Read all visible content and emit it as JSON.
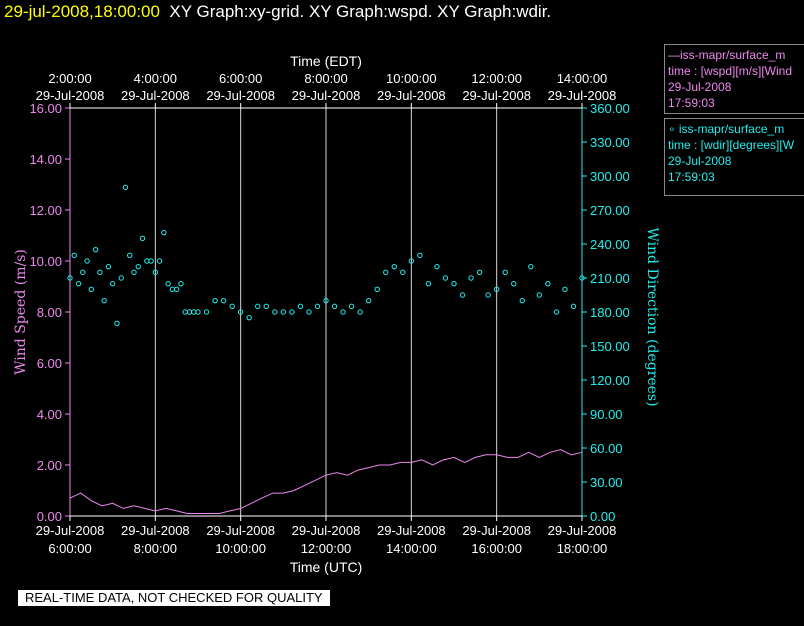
{
  "header": {
    "timestamp": "29-jul-2008,18:00:00",
    "graphs": "XY Graph:xy-grid.  XY Graph:wspd.  XY Graph:wdir."
  },
  "legend": [
    {
      "line1": "—iss-mapr/surface_m",
      "line2": "time : [wspd][m/s][Wind",
      "line3": "29-Jul-2008",
      "line4": "17:59:03"
    },
    {
      "line1": "∘ iss-mapr/surface_m",
      "line2": "time : [wdir][degrees][W",
      "line3": "29-Jul-2008",
      "line4": "17:59:03"
    }
  ],
  "qc_banner": "REAL-TIME DATA, NOT CHECKED FOR QUALITY",
  "colors": {
    "wspd": "#ee88ee",
    "wdir": "#22eeee",
    "axis_left": "#ee88ee",
    "axis_right": "#22eeee",
    "grid": "#ffffff",
    "background": "#000000"
  },
  "chart_data": {
    "type": "line",
    "top_axis_title": "Time (EDT)",
    "bottom_axis_title": "Time (UTC)",
    "ylabel_left": "Wind Speed (m/s)",
    "ylabel_right": "Wind Direction (degrees)",
    "xlim_utc_hours": [
      6.0,
      18.0
    ],
    "ylim_left": [
      0,
      16
    ],
    "ylim_right": [
      0,
      360
    ],
    "yticks_left": [
      "0.00",
      "2.00",
      "4.00",
      "6.00",
      "8.00",
      "10.00",
      "12.00",
      "14.00",
      "16.00"
    ],
    "yticks_right": [
      "0.00",
      "30.00",
      "60.00",
      "90.00",
      "120.00",
      "150.00",
      "180.00",
      "210.00",
      "240.00",
      "270.00",
      "300.00",
      "330.00",
      "360.00"
    ],
    "xticks_bottom": [
      {
        "date": "29-Jul-2008",
        "time": "6:00:00"
      },
      {
        "date": "29-Jul-2008",
        "time": "8:00:00"
      },
      {
        "date": "29-Jul-2008",
        "time": "10:00:00"
      },
      {
        "date": "29-Jul-2008",
        "time": "12:00:00"
      },
      {
        "date": "29-Jul-2008",
        "time": "14:00:00"
      },
      {
        "date": "29-Jul-2008",
        "time": "16:00:00"
      },
      {
        "date": "29-Jul-2008",
        "time": "18:00:00"
      }
    ],
    "xticks_top": [
      {
        "time": "2:00:00",
        "date": "29-Jul-2008"
      },
      {
        "time": "4:00:00",
        "date": "29-Jul-2008"
      },
      {
        "time": "6:00:00",
        "date": "29-Jul-2008"
      },
      {
        "time": "8:00:00",
        "date": "29-Jul-2008"
      },
      {
        "time": "10:00:00",
        "date": "29-Jul-2008"
      },
      {
        "time": "12:00:00",
        "date": "29-Jul-2008"
      },
      {
        "time": "14:00:00",
        "date": "29-Jul-2008"
      }
    ],
    "grid_x_hours_utc": [
      8,
      10,
      12,
      14,
      16
    ],
    "series": [
      {
        "key": "wspd",
        "axis": "left",
        "style": "line",
        "x": [
          6.0,
          6.25,
          6.5,
          6.75,
          7.0,
          7.25,
          7.5,
          7.75,
          8.0,
          8.25,
          8.5,
          8.75,
          9.0,
          9.25,
          9.5,
          9.75,
          10.0,
          10.25,
          10.5,
          10.75,
          11.0,
          11.25,
          11.5,
          11.75,
          12.0,
          12.25,
          12.5,
          12.75,
          13.0,
          13.25,
          13.5,
          13.75,
          14.0,
          14.25,
          14.5,
          14.75,
          15.0,
          15.25,
          15.5,
          15.75,
          16.0,
          16.25,
          16.5,
          16.75,
          17.0,
          17.25,
          17.5,
          17.75,
          18.0
        ],
        "y": [
          0.7,
          0.9,
          0.6,
          0.4,
          0.5,
          0.3,
          0.4,
          0.3,
          0.2,
          0.3,
          0.2,
          0.1,
          0.1,
          0.1,
          0.1,
          0.2,
          0.3,
          0.5,
          0.7,
          0.9,
          0.9,
          1.0,
          1.2,
          1.4,
          1.6,
          1.7,
          1.6,
          1.8,
          1.9,
          2.0,
          2.0,
          2.1,
          2.1,
          2.2,
          2.0,
          2.2,
          2.3,
          2.1,
          2.3,
          2.4,
          2.4,
          2.3,
          2.3,
          2.5,
          2.3,
          2.5,
          2.6,
          2.4,
          2.5
        ]
      },
      {
        "key": "wdir",
        "axis": "right",
        "style": "scatter",
        "x": [
          6.0,
          6.1,
          6.2,
          6.3,
          6.4,
          6.5,
          6.6,
          6.7,
          6.8,
          6.9,
          7.0,
          7.1,
          7.2,
          7.3,
          7.4,
          7.5,
          7.6,
          7.7,
          7.8,
          7.9,
          8.0,
          8.1,
          8.2,
          8.3,
          8.4,
          8.5,
          8.6,
          8.7,
          8.8,
          8.9,
          9.0,
          9.2,
          9.4,
          9.6,
          9.8,
          10.0,
          10.2,
          10.4,
          10.6,
          10.8,
          11.0,
          11.2,
          11.4,
          11.6,
          11.8,
          12.0,
          12.2,
          12.4,
          12.6,
          12.8,
          13.0,
          13.2,
          13.4,
          13.6,
          13.8,
          14.0,
          14.2,
          14.4,
          14.6,
          14.8,
          15.0,
          15.2,
          15.4,
          15.6,
          15.8,
          16.0,
          16.2,
          16.4,
          16.6,
          16.8,
          17.0,
          17.2,
          17.4,
          17.6,
          17.8,
          18.0
        ],
        "y": [
          210,
          230,
          205,
          215,
          225,
          200,
          235,
          215,
          190,
          220,
          205,
          170,
          210,
          290,
          230,
          215,
          220,
          245,
          225,
          225,
          215,
          225,
          250,
          205,
          200,
          200,
          205,
          180,
          180,
          180,
          180,
          180,
          190,
          190,
          185,
          180,
          175,
          185,
          185,
          180,
          180,
          180,
          185,
          180,
          185,
          190,
          185,
          180,
          185,
          180,
          190,
          200,
          215,
          220,
          215,
          225,
          230,
          205,
          220,
          210,
          205,
          195,
          210,
          215,
          195,
          200,
          215,
          205,
          190,
          220,
          195,
          205,
          180,
          200,
          185,
          210
        ]
      }
    ]
  }
}
